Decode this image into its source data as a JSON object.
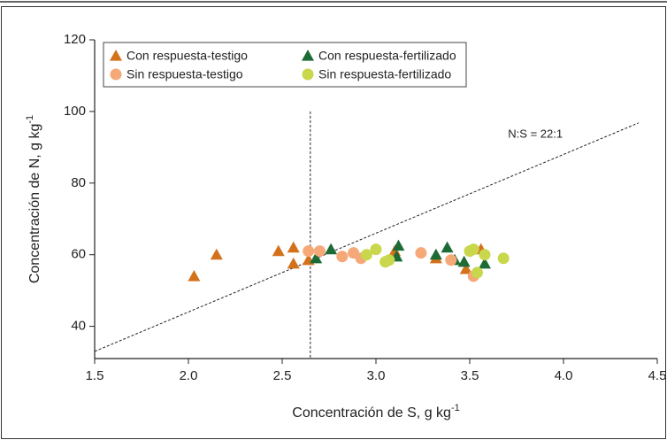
{
  "chart_data": {
    "type": "scatter",
    "xlabel": "Concentración de S, g kg",
    "xlabel_sup": "-1",
    "ylabel": "Concentración de N, g kg",
    "ylabel_sup": "-1",
    "annotation": "N:S = 22:1",
    "xlim": [
      1.5,
      4.5
    ],
    "ylim": [
      31,
      120
    ],
    "xticks": [
      1.5,
      {
        "value": 2.0,
        "label": "2.0"
      },
      2.5,
      {
        "value": 3.0,
        "label": "3.0"
      },
      3.5,
      {
        "value": 4.0,
        "label": "4.0"
      },
      4.5
    ],
    "yticks": [
      40,
      60,
      80,
      100,
      120
    ],
    "grid": false,
    "legend": "top-left",
    "ref_line": {
      "x": [
        1.5,
        4.4
      ],
      "y": [
        33,
        96.8
      ]
    },
    "vline": {
      "x": 2.65,
      "y_top": 100
    },
    "series": [
      {
        "name": "Con respuesta-testigo",
        "color": "#d4711b",
        "marker": "triangle",
        "x": [
          2.03,
          2.15,
          2.48,
          2.56,
          2.56,
          2.64,
          3.1,
          3.32,
          3.48,
          3.56
        ],
        "y": [
          54,
          60,
          61,
          62,
          57.5,
          58.5,
          61,
          59,
          56,
          61.5
        ]
      },
      {
        "name": "Con respuesta-fertilizado",
        "color": "#1c6b35",
        "marker": "triangle",
        "x": [
          2.68,
          2.76,
          3.12,
          3.11,
          3.32,
          3.38,
          3.42,
          3.47,
          3.58
        ],
        "y": [
          59,
          61.5,
          62.5,
          59.5,
          60,
          62,
          58.5,
          58,
          57.5
        ]
      },
      {
        "name": "Sin respuesta-testigo",
        "color": "#f5a878",
        "marker": "circle",
        "x": [
          2.64,
          2.7,
          2.82,
          2.88,
          2.92,
          3.24,
          3.4,
          3.52
        ],
        "y": [
          61,
          61,
          59.5,
          60.5,
          59,
          60.5,
          58.5,
          54
        ]
      },
      {
        "name": "Sin respuesta-fertilizado",
        "color": "#c9d74c",
        "marker": "circle",
        "x": [
          2.95,
          3.0,
          3.05,
          3.07,
          3.5,
          3.52,
          3.54,
          3.58,
          3.68
        ],
        "y": [
          60,
          61.5,
          58,
          58.5,
          61,
          61.5,
          55,
          60,
          59
        ]
      }
    ]
  }
}
